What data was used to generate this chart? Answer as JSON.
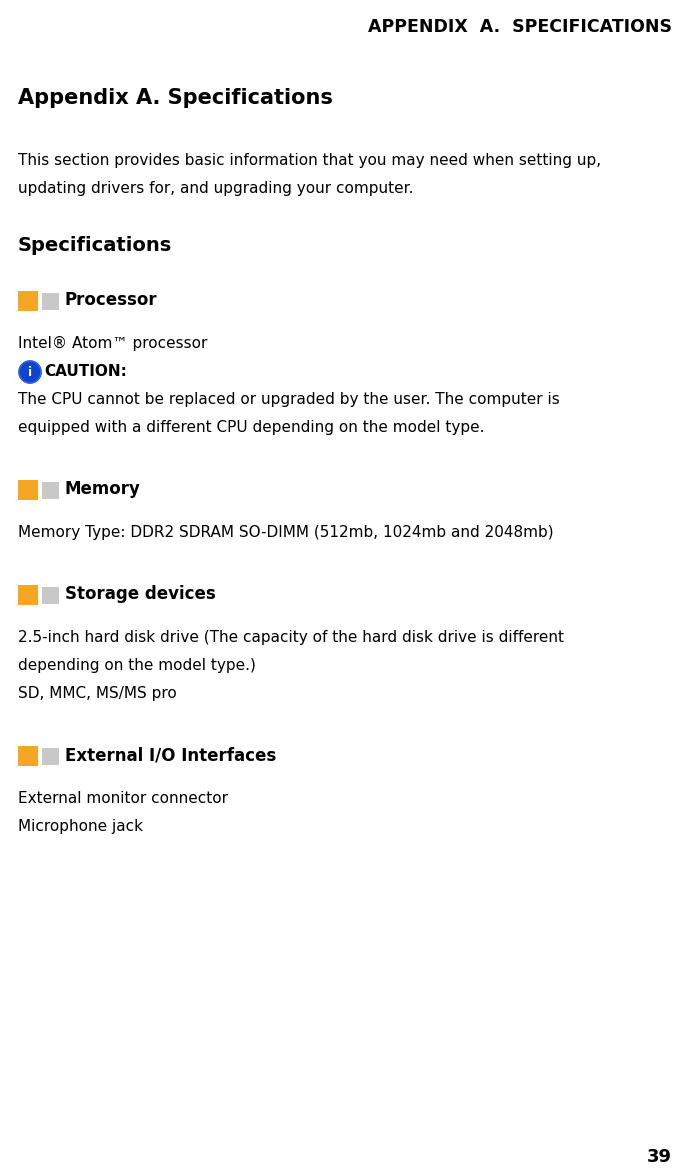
{
  "header_text": "APPENDIX  A.  SPECIFICATIONS",
  "title": "Appendix A. Specifications",
  "intro_line1": "This section provides basic information that you may need when setting up,",
  "intro_line2": "updating drivers for, and upgrading your computer.",
  "sections_label": "Specifications",
  "sections": [
    {
      "icon_color1": "#F5A623",
      "icon_color2": "#C8C8C8",
      "heading": "Processor",
      "content": [
        {
          "type": "normal",
          "text": "Intel® Atom™ processor"
        },
        {
          "type": "caution_label",
          "text": "CAUTION:"
        },
        {
          "type": "justified_line",
          "text": "The CPU cannot be replaced or upgraded by the user. The computer is"
        },
        {
          "type": "normal",
          "text": "equipped with a different CPU depending on the model type."
        }
      ]
    },
    {
      "icon_color1": "#F5A623",
      "icon_color2": "#C8C8C8",
      "heading": "Memory",
      "content": [
        {
          "type": "normal",
          "text": "Memory Type: DDR2 SDRAM SO-DIMM (512mb, 1024mb and 2048mb)"
        }
      ]
    },
    {
      "icon_color1": "#F5A623",
      "icon_color2": "#C8C8C8",
      "heading": "Storage devices",
      "content": [
        {
          "type": "justified_line",
          "text": "2.5-inch hard disk drive (The capacity of the hard disk drive is different"
        },
        {
          "type": "normal",
          "text": "depending on the model type.)"
        },
        {
          "type": "normal",
          "text": "SD, MMC, MS/MS pro"
        }
      ]
    },
    {
      "icon_color1": "#F5A623",
      "icon_color2": "#C8C8C8",
      "heading": "External I/O Interfaces",
      "content": [
        {
          "type": "normal",
          "text": "External monitor connector"
        },
        {
          "type": "normal",
          "text": "Microphone jack"
        }
      ]
    }
  ],
  "page_number": "39",
  "bg_color": "#FFFFFF",
  "text_color": "#000000",
  "header_fontsize": 12.5,
  "title_fontsize": 15,
  "body_fontsize": 11,
  "heading_fontsize": 12,
  "section_label_fontsize": 14,
  "page_num_fontsize": 13
}
